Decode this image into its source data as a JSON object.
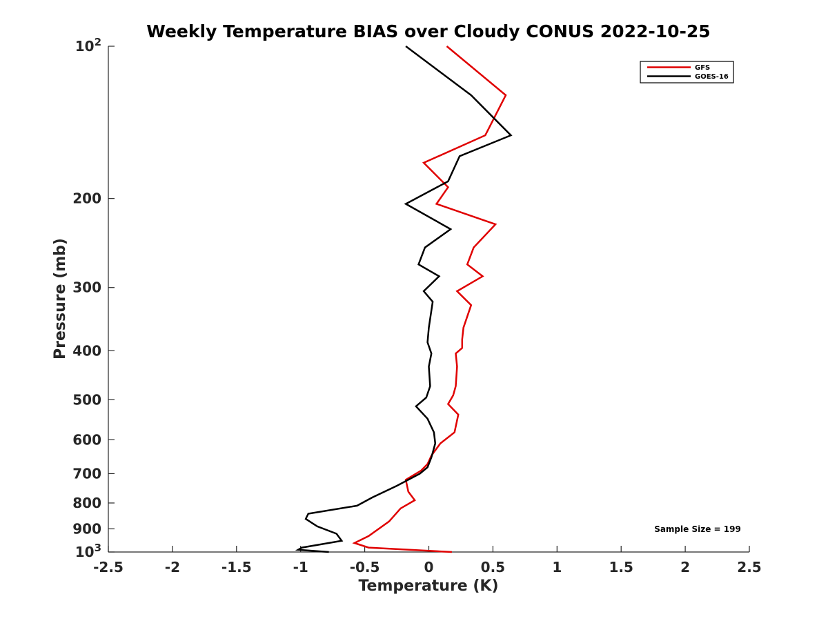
{
  "chart_data": {
    "type": "line",
    "title": "Weekly Temperature BIAS over Cloudy CONUS 2022-10-25",
    "xlabel": "Temperature (K)",
    "ylabel": "Pressure (mb)",
    "xlim": [
      -2.5,
      2.5
    ],
    "ylim": [
      100,
      1000
    ],
    "y_scale": "log",
    "y_reversed": true,
    "x_ticks": [
      "-2.5",
      "-2",
      "-1.5",
      "-1",
      "-0.5",
      "0",
      "0.5",
      "1",
      "1.5",
      "2",
      "2.5"
    ],
    "x_tick_values": [
      -2.5,
      -2,
      -1.5,
      -1,
      -0.5,
      0,
      0.5,
      1,
      1.5,
      2,
      2.5
    ],
    "y_ticks": [
      {
        "value": 100,
        "base": "10",
        "exp": "2"
      },
      {
        "value": 200,
        "label": "200"
      },
      {
        "value": 300,
        "label": "300"
      },
      {
        "value": 400,
        "label": "400"
      },
      {
        "value": 500,
        "label": "500"
      },
      {
        "value": 600,
        "label": "600"
      },
      {
        "value": 700,
        "label": "700"
      },
      {
        "value": 800,
        "label": "800"
      },
      {
        "value": 900,
        "label": "900"
      },
      {
        "value": 1000,
        "base": "10",
        "exp": "3"
      }
    ],
    "grid": false,
    "legend_position": "top-right",
    "annotation": "Sample Size = 199",
    "series": [
      {
        "name": "GFS",
        "color": "#e00000",
        "points": [
          {
            "p": 100,
            "t": 0.14
          },
          {
            "p": 125,
            "t": 0.6
          },
          {
            "p": 150,
            "t": 0.44
          },
          {
            "p": 170,
            "t": -0.04
          },
          {
            "p": 190,
            "t": 0.15
          },
          {
            "p": 205,
            "t": 0.06
          },
          {
            "p": 225,
            "t": 0.52
          },
          {
            "p": 250,
            "t": 0.35
          },
          {
            "p": 270,
            "t": 0.3
          },
          {
            "p": 285,
            "t": 0.42
          },
          {
            "p": 305,
            "t": 0.22
          },
          {
            "p": 325,
            "t": 0.33
          },
          {
            "p": 360,
            "t": 0.27
          },
          {
            "p": 380,
            "t": 0.26
          },
          {
            "p": 395,
            "t": 0.26
          },
          {
            "p": 405,
            "t": 0.21
          },
          {
            "p": 430,
            "t": 0.22
          },
          {
            "p": 470,
            "t": 0.21
          },
          {
            "p": 490,
            "t": 0.19
          },
          {
            "p": 510,
            "t": 0.15
          },
          {
            "p": 535,
            "t": 0.23
          },
          {
            "p": 580,
            "t": 0.2
          },
          {
            "p": 610,
            "t": 0.09
          },
          {
            "p": 645,
            "t": 0.02
          },
          {
            "p": 670,
            "t": -0.01
          },
          {
            "p": 690,
            "t": -0.06
          },
          {
            "p": 720,
            "t": -0.18
          },
          {
            "p": 760,
            "t": -0.16
          },
          {
            "p": 790,
            "t": -0.11
          },
          {
            "p": 820,
            "t": -0.22
          },
          {
            "p": 870,
            "t": -0.31
          },
          {
            "p": 930,
            "t": -0.47
          },
          {
            "p": 960,
            "t": -0.58
          },
          {
            "p": 980,
            "t": -0.47
          },
          {
            "p": 1000,
            "t": 0.18
          }
        ]
      },
      {
        "name": "GOES-16",
        "color": "#000000",
        "points": [
          {
            "p": 100,
            "t": -0.18
          },
          {
            "p": 125,
            "t": 0.33
          },
          {
            "p": 150,
            "t": 0.64
          },
          {
            "p": 165,
            "t": 0.24
          },
          {
            "p": 185,
            "t": 0.15
          },
          {
            "p": 205,
            "t": -0.18
          },
          {
            "p": 230,
            "t": 0.17
          },
          {
            "p": 250,
            "t": -0.03
          },
          {
            "p": 270,
            "t": -0.08
          },
          {
            "p": 285,
            "t": 0.08
          },
          {
            "p": 305,
            "t": -0.04
          },
          {
            "p": 320,
            "t": 0.03
          },
          {
            "p": 360,
            "t": 0.0
          },
          {
            "p": 385,
            "t": -0.01
          },
          {
            "p": 405,
            "t": 0.02
          },
          {
            "p": 430,
            "t": 0.0
          },
          {
            "p": 470,
            "t": 0.01
          },
          {
            "p": 495,
            "t": -0.02
          },
          {
            "p": 515,
            "t": -0.1
          },
          {
            "p": 545,
            "t": -0.01
          },
          {
            "p": 580,
            "t": 0.04
          },
          {
            "p": 610,
            "t": 0.05
          },
          {
            "p": 650,
            "t": 0.02
          },
          {
            "p": 680,
            "t": -0.01
          },
          {
            "p": 700,
            "t": -0.07
          },
          {
            "p": 740,
            "t": -0.25
          },
          {
            "p": 780,
            "t": -0.44
          },
          {
            "p": 810,
            "t": -0.56
          },
          {
            "p": 840,
            "t": -0.94
          },
          {
            "p": 860,
            "t": -0.96
          },
          {
            "p": 890,
            "t": -0.87
          },
          {
            "p": 920,
            "t": -0.72
          },
          {
            "p": 950,
            "t": -0.68
          },
          {
            "p": 980,
            "t": -0.99
          },
          {
            "p": 990,
            "t": -1.02
          },
          {
            "p": 1000,
            "t": -0.78
          }
        ]
      }
    ]
  }
}
